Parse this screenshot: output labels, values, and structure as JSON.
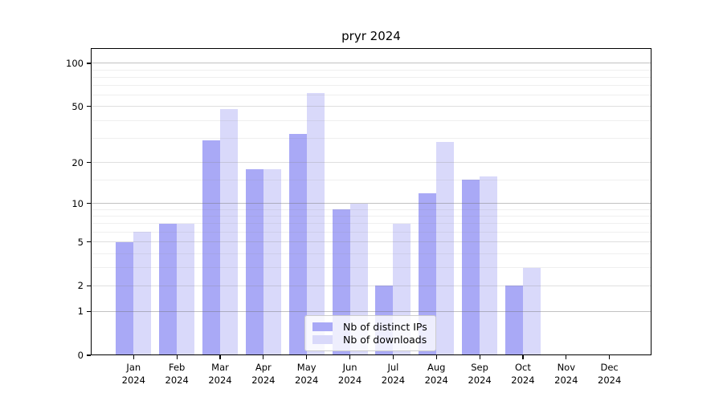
{
  "title": "pryr 2024",
  "chart_data": {
    "type": "bar",
    "title": "pryr 2024",
    "y_scale": "log(1+x)",
    "grid": true,
    "legend_position": "lower center",
    "categories": [
      "Jan 2024",
      "Feb 2024",
      "Mar 2024",
      "Apr 2024",
      "May 2024",
      "Jun 2024",
      "Jul 2024",
      "Aug 2024",
      "Sep 2024",
      "Oct 2024",
      "Nov 2024",
      "Dec 2024"
    ],
    "series": [
      {
        "name": "Nb of distinct IPs",
        "color": "#a9a9f6",
        "values": [
          5,
          7,
          29,
          18,
          32,
          9,
          2,
          12,
          15,
          2,
          0,
          0
        ]
      },
      {
        "name": "Nb of downloads",
        "color": "#d9d9fa",
        "values": [
          6,
          7,
          48,
          18,
          62,
          10,
          7,
          28,
          16,
          3,
          0,
          0
        ]
      }
    ],
    "y_major_ticks": [
      0,
      1,
      2,
      5,
      10,
      20,
      50,
      100
    ],
    "y_power_ticks": [
      1,
      10,
      100
    ],
    "y_minor_gridlines": [
      3,
      4,
      6,
      7,
      8,
      9,
      15,
      30,
      40,
      60,
      70,
      80,
      90
    ],
    "ylim": [
      0,
      127.4
    ]
  }
}
